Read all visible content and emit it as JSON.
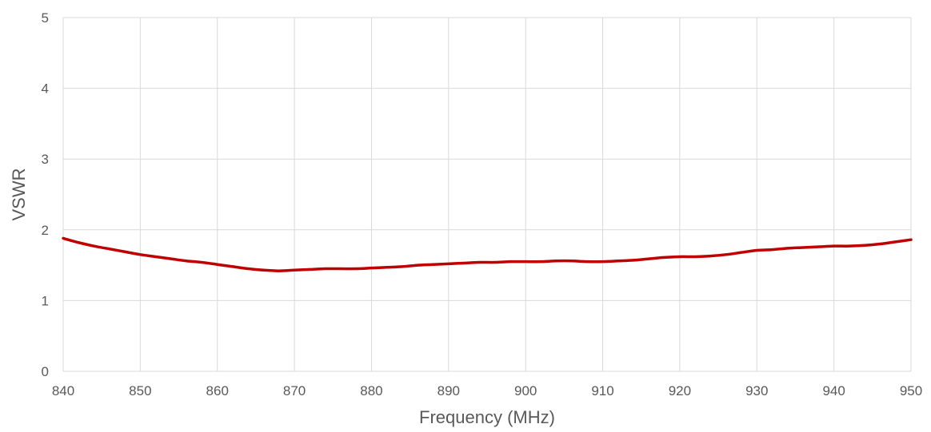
{
  "chart_data": {
    "type": "line",
    "title": "",
    "xlabel": "Frequency (MHz)",
    "ylabel": "VSWR",
    "xlim": [
      840,
      950
    ],
    "ylim": [
      0,
      5
    ],
    "xticks": [
      840,
      850,
      860,
      870,
      880,
      890,
      900,
      910,
      920,
      930,
      940,
      950
    ],
    "yticks": [
      0,
      1,
      2,
      3,
      4,
      5
    ],
    "grid": true,
    "legend": "none",
    "series": [
      {
        "color": "#c00000",
        "x": [
          840,
          842,
          844,
          846,
          848,
          850,
          852,
          854,
          856,
          858,
          860,
          862,
          864,
          866,
          868,
          870,
          872,
          874,
          876,
          878,
          880,
          882,
          884,
          886,
          888,
          890,
          892,
          894,
          896,
          898,
          900,
          902,
          904,
          906,
          908,
          910,
          912,
          914,
          916,
          918,
          920,
          922,
          924,
          926,
          928,
          930,
          932,
          934,
          936,
          938,
          940,
          942,
          944,
          946,
          948,
          950
        ],
        "y": [
          1.88,
          1.82,
          1.77,
          1.73,
          1.69,
          1.65,
          1.62,
          1.59,
          1.56,
          1.54,
          1.51,
          1.48,
          1.45,
          1.43,
          1.42,
          1.43,
          1.44,
          1.45,
          1.45,
          1.45,
          1.46,
          1.47,
          1.48,
          1.5,
          1.51,
          1.52,
          1.53,
          1.54,
          1.54,
          1.55,
          1.55,
          1.55,
          1.56,
          1.56,
          1.55,
          1.55,
          1.56,
          1.57,
          1.59,
          1.61,
          1.62,
          1.62,
          1.63,
          1.65,
          1.68,
          1.71,
          1.72,
          1.74,
          1.75,
          1.76,
          1.77,
          1.77,
          1.78,
          1.8,
          1.83,
          1.86
        ]
      }
    ]
  }
}
